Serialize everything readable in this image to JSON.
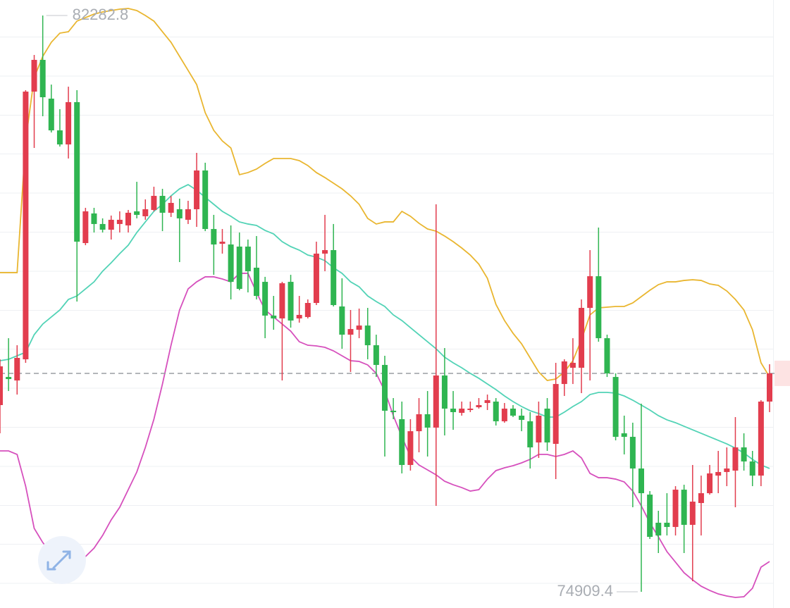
{
  "chart_data": {
    "type": "candlestick",
    "open": [
      77298,
      77658,
      77613,
      77884,
      81309,
      81715,
      81219,
      80813,
      80633,
      81174,
      79371,
      79750,
      79615,
      79542,
      79615,
      79597,
      79777,
      79714,
      79795,
      79975,
      79759,
      79804,
      79669,
      79804,
      80300,
      79551,
      79362,
      79353,
      79326,
      79326,
      79056,
      78875,
      78443,
      78407,
      78875,
      78407,
      78425,
      78605,
      79236,
      79281,
      78560,
      78199,
      78262,
      78316,
      78064,
      77812,
      77226,
      77118,
      76532,
      76964,
      77181,
      77010,
      77677,
      77253,
      77199,
      77235,
      77271,
      77325,
      77343,
      77091,
      77253,
      77163,
      77091,
      76820,
      77253,
      76802,
      77568,
      77776,
      77776,
      78542,
      78947,
      78154,
      77658,
      76937,
      76892,
      76487,
      76153,
      75793,
      75793,
      75739,
      76216,
      75766,
      76045,
      76171,
      76396,
      76442,
      76460,
      76757,
      76577,
      76396,
      77343
    ],
    "high": [
      77884,
      78154,
      78064,
      81327,
      81778,
      82282.8,
      81399,
      81084,
      81372,
      81327,
      79822,
      79822,
      79687,
      79723,
      79777,
      79795,
      80155,
      79930,
      80092,
      80065,
      79975,
      79939,
      79912,
      80525,
      80399,
      79732,
      79551,
      79597,
      79506,
      79416,
      79461,
      78939,
      78695,
      78875,
      78965,
      78695,
      78650,
      79389,
      79732,
      79615,
      78920,
      78515,
      78533,
      78542,
      78199,
      77929,
      77388,
      77343,
      77118,
      77388,
      77478,
      79867,
      78028,
      77478,
      77343,
      77343,
      77388,
      77433,
      77388,
      77325,
      77298,
      77253,
      77208,
      77343,
      77388,
      77839,
      77884,
      78154,
      78650,
      79281,
      79569,
      78199,
      77704,
      77163,
      77073,
      77316,
      76198,
      75946,
      76171,
      76261,
      76279,
      76532,
      76396,
      76532,
      76712,
      76757,
      77145,
      76937,
      76712,
      77361,
      77821
    ],
    "low": [
      76937,
      77478,
      77433,
      77839,
      80588,
      80994,
      80786,
      80606,
      80453,
      78623,
      79344,
      79506,
      79506,
      79416,
      79506,
      79506,
      79687,
      79669,
      79777,
      79524,
      79705,
      79128,
      79615,
      79578,
      79524,
      78965,
      79236,
      78650,
      78767,
      78740,
      78650,
      78154,
      78262,
      77613,
      78289,
      78353,
      78407,
      78578,
      79011,
      78560,
      78019,
      77722,
      78154,
      77884,
      77658,
      76640,
      77118,
      76424,
      76460,
      76694,
      76640,
      76009,
      76910,
      76982,
      77163,
      77208,
      77253,
      77235,
      77037,
      77073,
      77145,
      76964,
      76487,
      76622,
      76712,
      76351,
      77415,
      77568,
      77451,
      77613,
      78109,
      77658,
      76847,
      76667,
      75991,
      74909.4,
      75585,
      75405,
      75630,
      75630,
      75405,
      75044,
      75630,
      76153,
      76171,
      76261,
      75991,
      76460,
      76261,
      76261,
      77208
    ],
    "close": [
      77794,
      77631,
      77902,
      81309,
      81715,
      81237,
      80813,
      80633,
      81174,
      79389,
      79777,
      79615,
      79542,
      79669,
      79669,
      79759,
      79732,
      79804,
      79975,
      79759,
      79885,
      79687,
      79804,
      80300,
      79551,
      79353,
      79389,
      78875,
      78785,
      79011,
      78695,
      78443,
      78407,
      78857,
      78380,
      78452,
      78605,
      79236,
      79281,
      78578,
      78199,
      78271,
      78316,
      78064,
      77812,
      77226,
      77208,
      76532,
      76964,
      77181,
      77010,
      77677,
      77253,
      77208,
      77253,
      77253,
      77298,
      77361,
      77091,
      77253,
      77163,
      77109,
      76757,
      77163,
      76820,
      77568,
      77857,
      77839,
      78542,
      78947,
      78154,
      77704,
      76892,
      76892,
      76487,
      76171,
      75612,
      75630,
      75739,
      76216,
      75766,
      76063,
      76171,
      76424,
      76442,
      76487,
      76757,
      76577,
      76396,
      77343,
      77704
    ],
    "up_color": "#e23d4e",
    "down_color": "#2fb551",
    "series": [
      {
        "color": "#e9b630",
        "values": [
          78993,
          78993,
          78993,
          80678,
          81489,
          81760,
          81940,
          82057,
          82075,
          82211,
          82256,
          82301,
          82328,
          82346,
          82364,
          82373,
          82346,
          82283,
          82211,
          82075,
          81940,
          81760,
          81580,
          81399,
          81039,
          80813,
          80678,
          80588,
          80246,
          80273,
          80318,
          80390,
          80453,
          80453,
          80453,
          80426,
          80363,
          80273,
          80209,
          80137,
          80065,
          79975,
          79867,
          79687,
          79615,
          79642,
          79642,
          79777,
          79714,
          79624,
          79551,
          79524,
          79461,
          79389,
          79308,
          79218,
          79101,
          78920,
          78587,
          78380,
          78217,
          78082,
          77902,
          77722,
          77613,
          77631,
          77722,
          77866,
          78136,
          78452,
          78542,
          78551,
          78560,
          78560,
          78605,
          78686,
          78767,
          78839,
          78875,
          78875,
          78893,
          78902,
          78893,
          78848,
          78830,
          78758,
          78650,
          78515,
          78262,
          77839,
          77658
        ]
      },
      {
        "color": "#52d3b6",
        "values": [
          77866,
          77884,
          77929,
          77974,
          78199,
          78335,
          78425,
          78515,
          78650,
          78695,
          78785,
          78875,
          79011,
          79119,
          79236,
          79344,
          79506,
          79642,
          79777,
          79867,
          79975,
          80065,
          80119,
          80047,
          79957,
          79867,
          79777,
          79714,
          79642,
          79615,
          79597,
          79533,
          79488,
          79389,
          79326,
          79281,
          79218,
          79191,
          79146,
          79056,
          78984,
          78875,
          78812,
          78695,
          78623,
          78560,
          78452,
          78380,
          78289,
          78199,
          78109,
          78019,
          77911,
          77839,
          77776,
          77704,
          77641,
          77568,
          77496,
          77415,
          77343,
          77280,
          77226,
          77190,
          77145,
          77145,
          77208,
          77280,
          77343,
          77433,
          77460,
          77460,
          77451,
          77415,
          77361,
          77298,
          77235,
          77163,
          77109,
          77073,
          77027,
          76982,
          76937,
          76892,
          76847,
          76802,
          76748,
          76685,
          76604,
          76532,
          76487
        ]
      },
      {
        "color": "#d650bd",
        "values": [
          76712,
          76712,
          76667,
          76261,
          75721,
          75540,
          75405,
          75342,
          75288,
          75315,
          75360,
          75468,
          75630,
          75829,
          75991,
          76216,
          76442,
          76757,
          77118,
          77568,
          78064,
          78515,
          78785,
          78875,
          78939,
          78939,
          78911,
          78875,
          78984,
          78984,
          78740,
          78515,
          78425,
          78335,
          78244,
          78109,
          78064,
          78055,
          78037,
          77992,
          77929,
          77866,
          77857,
          77812,
          77704,
          77478,
          77163,
          76892,
          76640,
          76532,
          76469,
          76406,
          76324,
          76279,
          76243,
          76198,
          76216,
          76351,
          76460,
          76496,
          76523,
          76559,
          76604,
          76667,
          76667,
          76640,
          76667,
          76712,
          76622,
          76424,
          76369,
          76369,
          76351,
          76315,
          76198,
          76009,
          75793,
          75612,
          75423,
          75288,
          75153,
          75062,
          74981,
          74927,
          74882,
          74855,
          74837,
          74846,
          74954,
          75225,
          75297
        ]
      }
    ],
    "ylim": [
      74702,
      82481
    ]
  }
}
